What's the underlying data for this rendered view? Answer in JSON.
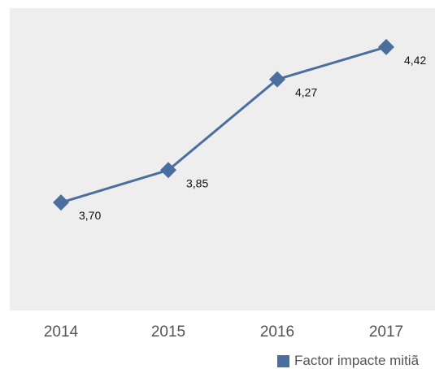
{
  "chart_data": {
    "type": "line",
    "title": "",
    "xlabel": "",
    "ylabel": "",
    "categories": [
      "2014",
      "2015",
      "2016",
      "2017"
    ],
    "series": [
      {
        "name": "Factor impacte mitiã",
        "values": [
          3.7,
          3.85,
          4.27,
          4.42
        ],
        "labels": [
          "3,70",
          "3,85",
          "4,27",
          "4,42"
        ]
      }
    ],
    "ylim": [
      3.2,
      4.6
    ],
    "grid": false,
    "legend": "bottom-right",
    "colors": {
      "line": "#4a6e9e",
      "plot_background": "#eeeeee",
      "axis_text": "#555555",
      "data_label": "#111111"
    }
  }
}
